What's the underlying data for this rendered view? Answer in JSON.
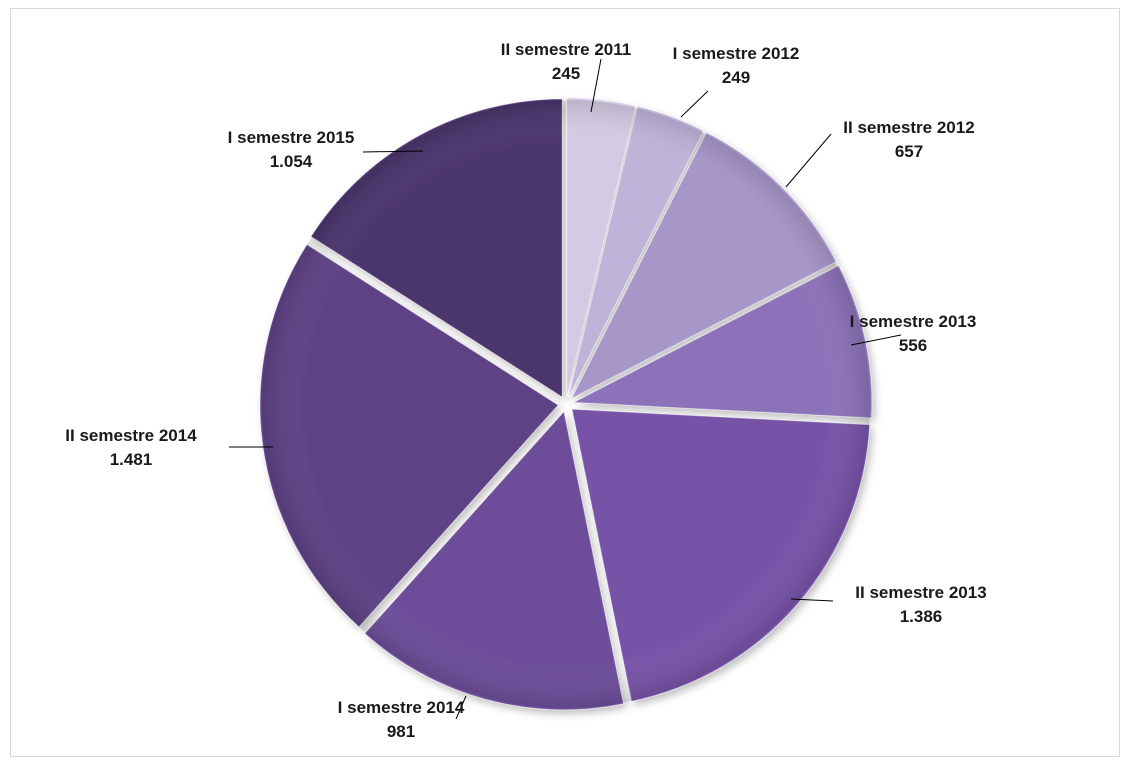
{
  "chart_data": {
    "type": "pie",
    "title": "",
    "slices": [
      {
        "label": "II semestre 2011",
        "value": 245,
        "value_label": "245",
        "color": "#d3cbe3"
      },
      {
        "label": "I semestre 2012",
        "value": 249,
        "value_label": "249",
        "color": "#c0b3da"
      },
      {
        "label": "II semestre 2012",
        "value": 657,
        "value_label": "657",
        "color": "#a896c9"
      },
      {
        "label": "I semestre 2013",
        "value": 556,
        "value_label": "556",
        "color": "#8c72b8"
      },
      {
        "label": "II semestre 2013",
        "value": 1386,
        "value_label": "1.386",
        "color": "#7753a8"
      },
      {
        "label": "I semestre 2014",
        "value": 981,
        "value_label": "981",
        "color": "#6d4e9a"
      },
      {
        "label": "II semestre 2014",
        "value": 1481,
        "value_label": "1.481",
        "color": "#5e4386"
      },
      {
        "label": "I semestre 2015",
        "value": 1054,
        "value_label": "1.054",
        "color": "#4c366d"
      }
    ],
    "legend": "none",
    "data_labels": "outside-with-leader-lines"
  }
}
